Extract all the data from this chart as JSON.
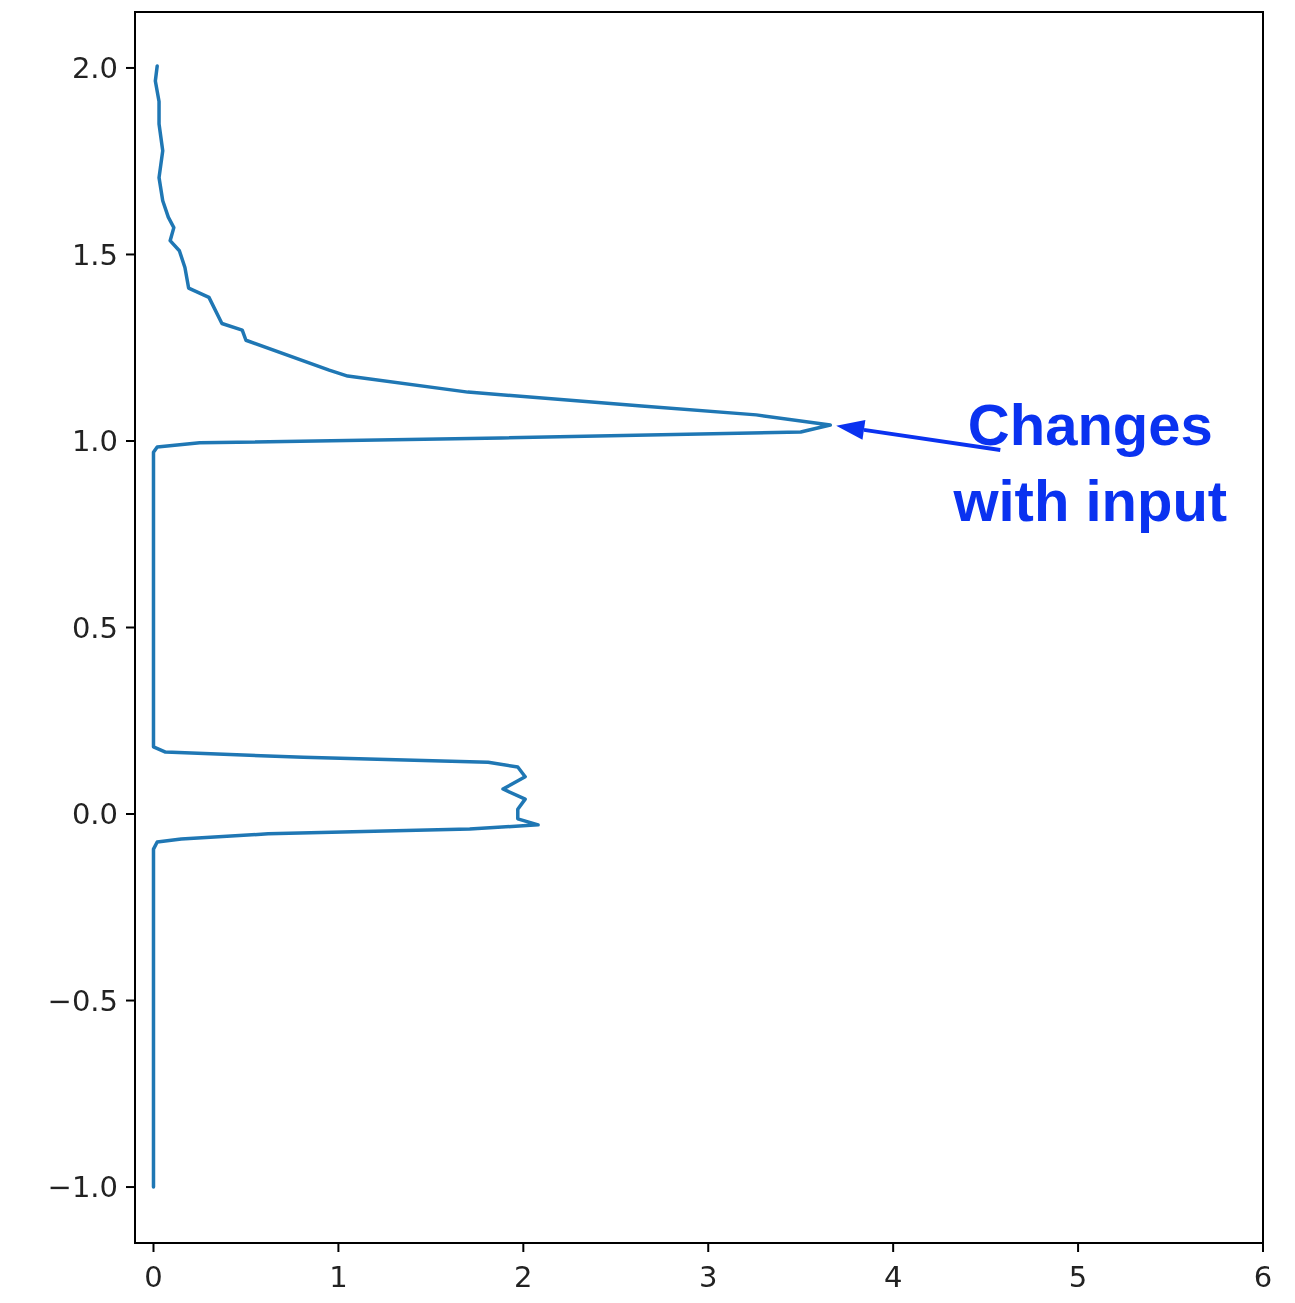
{
  "chart_data": {
    "type": "line",
    "xlim": [
      -0.1,
      6
    ],
    "ylim": [
      -1.15,
      2.15
    ],
    "xticks": [
      0,
      1,
      2,
      3,
      4,
      5,
      6
    ],
    "yticks": [
      {
        "value": -1,
        "label": "−1.0"
      },
      {
        "value": -0.5,
        "label": "−0.5"
      },
      {
        "value": 0,
        "label": "0.0"
      },
      {
        "value": 0.5,
        "label": "0.5"
      },
      {
        "value": 1,
        "label": "1.0"
      },
      {
        "value": 1.5,
        "label": "1.5"
      },
      {
        "value": 2,
        "label": "2.0"
      }
    ],
    "grid": false,
    "series": [
      {
        "color": "#1f77b4",
        "x": [
          0,
          0,
          0.02,
          0.15,
          0.62,
          1.71,
          2.08,
          1.97,
          1.97,
          2.01,
          1.89,
          2.01,
          1.97,
          1.81,
          0.81,
          0.065,
          0,
          0,
          0.02,
          0.25,
          1.88,
          3.5,
          3.66,
          3.26,
          2.64,
          1.7,
          1.05,
          0.95,
          0.5,
          0.48,
          0.37,
          0.3,
          0.19,
          0.17,
          0.14,
          0.09,
          0.11,
          0.08,
          0.05,
          0.03,
          0.05,
          0.03,
          0.03,
          0.01,
          0.02
        ],
        "values": [
          -1,
          -0.094,
          -0.075,
          -0.067,
          -0.053,
          -0.04,
          -0.029,
          -0.013,
          0.013,
          0.04,
          0.067,
          0.1,
          0.126,
          0.139,
          0.152,
          0.166,
          0.18,
          0.97,
          0.984,
          0.995,
          1.008,
          1.024,
          1.043,
          1.07,
          1.094,
          1.131,
          1.174,
          1.19,
          1.27,
          1.297,
          1.315,
          1.385,
          1.41,
          1.465,
          1.51,
          1.537,
          1.572,
          1.6,
          1.644,
          1.706,
          1.778,
          1.85,
          1.91,
          1.965,
          2.005
        ]
      }
    ],
    "annotations": [
      {
        "text": "Changes with input",
        "x": 3.66,
        "y": 1.043
      }
    ]
  }
}
